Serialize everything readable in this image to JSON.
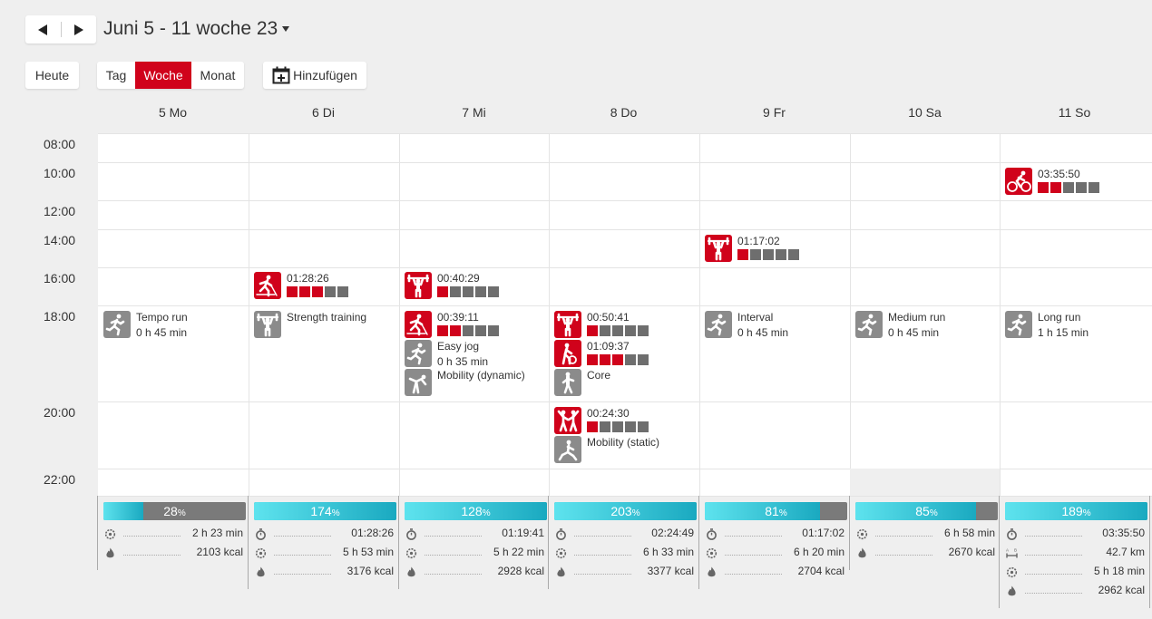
{
  "toolbar": {
    "week_title": "Juni 5 - 11 woche 23",
    "today_label": "Heute",
    "views": [
      "Tag",
      "Woche",
      "Monat"
    ],
    "active_view": "Woche",
    "add_label": "Hinzufügen"
  },
  "days": [
    "5 Mo",
    "6 Di",
    "7 Mi",
    "8 Do",
    "9 Fr",
    "10 Sa",
    "11 So"
  ],
  "times": [
    "08:00",
    "10:00",
    "12:00",
    "14:00",
    "16:00",
    "18:00",
    "20:00",
    "22:00"
  ],
  "events": [
    {
      "day": 0,
      "slot": "18:00",
      "icon": "running-icon",
      "kind": "planned",
      "title": "Tempo run",
      "subtitle": "0 h 45 min"
    },
    {
      "day": 1,
      "slot": "16:00",
      "icon": "crosscountry-skiing-icon",
      "kind": "done",
      "title": "01:28:26",
      "intensity": 3
    },
    {
      "day": 1,
      "slot": "18:00",
      "icon": "weightlifting-icon",
      "kind": "planned",
      "title": "Strength training"
    },
    {
      "day": 2,
      "slot": "16:00",
      "icon": "weightlifting-icon",
      "kind": "done",
      "title": "00:40:29",
      "intensity": 1
    },
    {
      "day": 2,
      "slot": "18:00",
      "icon": "crosscountry-skiing-icon",
      "kind": "done",
      "title": "00:39:11",
      "intensity": 2
    },
    {
      "day": 2,
      "slot": "18:00",
      "icon": "running-icon",
      "kind": "planned",
      "title": "Easy jog",
      "subtitle": "0 h 35 min"
    },
    {
      "day": 2,
      "slot": "18:00",
      "icon": "stretching-icon",
      "kind": "planned",
      "title": "Mobility (dynamic)"
    },
    {
      "day": 3,
      "slot": "18:00",
      "icon": "weightlifting-icon",
      "kind": "done",
      "title": "00:50:41",
      "intensity": 1
    },
    {
      "day": 3,
      "slot": "18:00",
      "icon": "core-training-icon",
      "kind": "done",
      "title": "01:09:37",
      "intensity": 3
    },
    {
      "day": 3,
      "slot": "18:00",
      "icon": "core-icon",
      "kind": "planned",
      "title": "Core"
    },
    {
      "day": 3,
      "slot": "20:00",
      "icon": "dance-icon",
      "kind": "done",
      "title": "00:24:30",
      "intensity": 1
    },
    {
      "day": 3,
      "slot": "20:00",
      "icon": "mobility-static-icon",
      "kind": "planned",
      "title": "Mobility (static)"
    },
    {
      "day": 4,
      "slot": "14:00",
      "icon": "weightlifting-icon",
      "kind": "done",
      "title": "01:17:02",
      "intensity": 1
    },
    {
      "day": 4,
      "slot": "18:00",
      "icon": "running-icon",
      "kind": "planned",
      "title": "Interval",
      "subtitle": "0 h 45 min"
    },
    {
      "day": 5,
      "slot": "18:00",
      "icon": "running-icon",
      "kind": "planned",
      "title": "Medium run",
      "subtitle": "0 h 45 min"
    },
    {
      "day": 6,
      "slot": "10:00",
      "icon": "cycling-icon",
      "kind": "done",
      "title": "03:35:50",
      "intensity": 2
    },
    {
      "day": 6,
      "slot": "18:00",
      "icon": "running-icon",
      "kind": "planned",
      "title": "Long run",
      "subtitle": "1 h 15 min"
    }
  ],
  "summaries": [
    {
      "percent": 28,
      "pct_unit": "%",
      "rows": [
        {
          "icon": "activity-time-icon",
          "value": "2 h 23 min"
        },
        {
          "icon": "calories-icon",
          "value": "2103 kcal"
        }
      ]
    },
    {
      "percent": 174,
      "pct_unit": "%",
      "rows": [
        {
          "icon": "stopwatch-icon",
          "value": "01:28:26"
        },
        {
          "icon": "activity-time-icon",
          "value": "5 h 53 min"
        },
        {
          "icon": "calories-icon",
          "value": "3176 kcal"
        }
      ]
    },
    {
      "percent": 128,
      "pct_unit": "%",
      "rows": [
        {
          "icon": "stopwatch-icon",
          "value": "01:19:41"
        },
        {
          "icon": "activity-time-icon",
          "value": "5 h 22 min"
        },
        {
          "icon": "calories-icon",
          "value": "2928 kcal"
        }
      ]
    },
    {
      "percent": 203,
      "pct_unit": "%",
      "rows": [
        {
          "icon": "stopwatch-icon",
          "value": "02:24:49"
        },
        {
          "icon": "activity-time-icon",
          "value": "6 h 33 min"
        },
        {
          "icon": "calories-icon",
          "value": "3377 kcal"
        }
      ]
    },
    {
      "percent": 81,
      "pct_unit": "%",
      "rows": [
        {
          "icon": "stopwatch-icon",
          "value": "01:17:02"
        },
        {
          "icon": "activity-time-icon",
          "value": "6 h 20 min"
        },
        {
          "icon": "calories-icon",
          "value": "2704 kcal"
        }
      ]
    },
    {
      "percent": 85,
      "pct_unit": "%",
      "rows": [
        {
          "icon": "activity-time-icon",
          "value": "6 h 58 min"
        },
        {
          "icon": "calories-icon",
          "value": "2670 kcal"
        }
      ]
    },
    {
      "percent": 189,
      "pct_unit": "%",
      "rows": [
        {
          "icon": "stopwatch-icon",
          "value": "03:35:50"
        },
        {
          "icon": "distance-icon",
          "value": "42.7 km"
        },
        {
          "icon": "activity-time-icon",
          "value": "5 h 18 min"
        },
        {
          "icon": "calories-icon",
          "value": "2962 kcal"
        }
      ]
    }
  ],
  "colors": {
    "accent": "#d0021b",
    "planned": "#8b8b8b",
    "progress": "#2bc0d4"
  }
}
